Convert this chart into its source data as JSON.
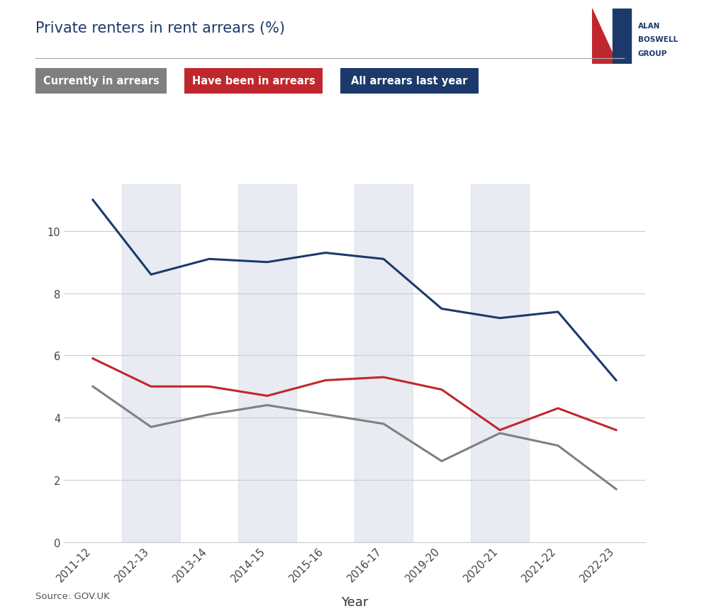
{
  "title": "Private renters in rent arrears (%)",
  "xlabel": "Year",
  "source": "Source: GOV.UK",
  "years": [
    "2011-12",
    "2012-13",
    "2013-14",
    "2014-15",
    "2015-16",
    "2016-17",
    "2019-20",
    "2020-21",
    "2021-22",
    "2022-23"
  ],
  "currently_in_arrears": [
    5.0,
    3.7,
    4.1,
    4.4,
    4.1,
    3.8,
    2.6,
    3.5,
    3.1,
    1.7
  ],
  "have_been_in_arrears": [
    5.9,
    5.0,
    5.0,
    4.7,
    5.2,
    5.3,
    4.9,
    3.6,
    4.3,
    3.6
  ],
  "all_arrears_last_year": [
    11.0,
    8.6,
    9.1,
    9.0,
    9.3,
    9.1,
    7.5,
    7.2,
    7.4,
    5.2
  ],
  "color_currently": "#808080",
  "color_have_been": "#C0272D",
  "color_all_arrears": "#1B3A6B",
  "color_bg_band": "#D9DEE8",
  "ylim": [
    0,
    11.5
  ],
  "yticks": [
    0,
    2,
    4,
    6,
    8,
    10
  ],
  "legend_items": [
    "Currently in arrears",
    "Have been in arrears",
    "All arrears last year"
  ],
  "legend_colors": [
    "#7F7F7F",
    "#C0272D",
    "#1B3A6B"
  ],
  "title_color": "#1B3A6B",
  "background_color": "#FFFFFF",
  "shaded_indices": [
    1,
    3,
    5,
    7
  ],
  "title_fontsize": 15,
  "axis_label_fontsize": 13
}
